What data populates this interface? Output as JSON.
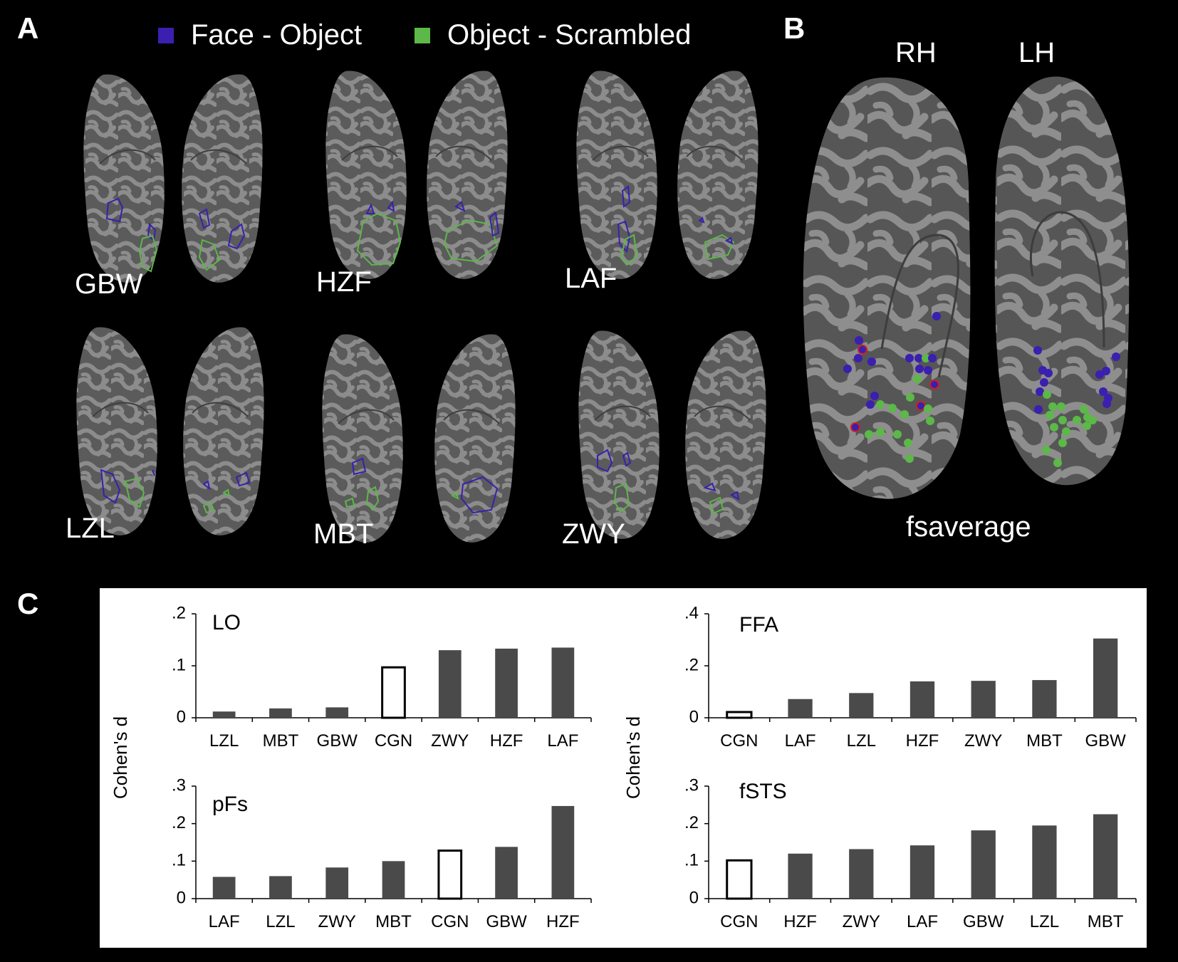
{
  "panels": {
    "A": {
      "letter": "A",
      "legend": [
        {
          "label": "Face - Object",
          "color": "#3a1fb0"
        },
        {
          "label": "Object - Scrambled",
          "color": "#5cb848"
        }
      ],
      "subjects": [
        "GBW",
        "HZF",
        "LAF",
        "LZL",
        "MBT",
        "ZWY"
      ]
    },
    "B": {
      "letter": "B",
      "rh": "RH",
      "lh": "LH",
      "template": "fsaverage"
    },
    "C": {
      "letter": "C",
      "ylabel": "Cohen's d"
    }
  },
  "chart_data": [
    {
      "type": "bar",
      "title": "LO",
      "ylabel": "Cohen's d",
      "ylim": [
        0,
        0.2
      ],
      "yticks": [
        "0",
        ".1",
        ".2"
      ],
      "categories": [
        "LZL",
        "MBT",
        "GBW",
        "CGN",
        "ZWY",
        "HZF",
        "LAF"
      ],
      "values": [
        0.012,
        0.018,
        0.02,
        0.097,
        0.13,
        0.133,
        0.135
      ],
      "outlined": [
        "CGN"
      ]
    },
    {
      "type": "bar",
      "title": "FFA",
      "ylabel": "Cohen's d",
      "ylim": [
        0,
        0.4
      ],
      "yticks": [
        "0",
        ".2",
        ".4"
      ],
      "categories": [
        "CGN",
        "LAF",
        "LZL",
        "HZF",
        "ZWY",
        "MBT",
        "GBW"
      ],
      "values": [
        0.022,
        0.072,
        0.095,
        0.14,
        0.142,
        0.145,
        0.305
      ],
      "outlined": [
        "CGN"
      ]
    },
    {
      "type": "bar",
      "title": "pFs",
      "ylabel": "Cohen's d",
      "ylim": [
        0,
        0.3
      ],
      "yticks": [
        "0",
        ".1",
        ".2",
        ".3"
      ],
      "categories": [
        "LAF",
        "LZL",
        "ZWY",
        "MBT",
        "CGN",
        "GBW",
        "HZF"
      ],
      "values": [
        0.058,
        0.06,
        0.083,
        0.1,
        0.128,
        0.138,
        0.247
      ],
      "outlined": [
        "CGN"
      ]
    },
    {
      "type": "bar",
      "title": "fSTS",
      "ylabel": "Cohen's d",
      "ylim": [
        0,
        0.3
      ],
      "yticks": [
        "0",
        ".1",
        ".2",
        ".3"
      ],
      "categories": [
        "CGN",
        "HZF",
        "ZWY",
        "LAF",
        "GBW",
        "LZL",
        "MBT"
      ],
      "values": [
        0.102,
        0.12,
        0.132,
        0.142,
        0.182,
        0.195,
        0.225
      ],
      "outlined": [
        "CGN"
      ]
    }
  ]
}
